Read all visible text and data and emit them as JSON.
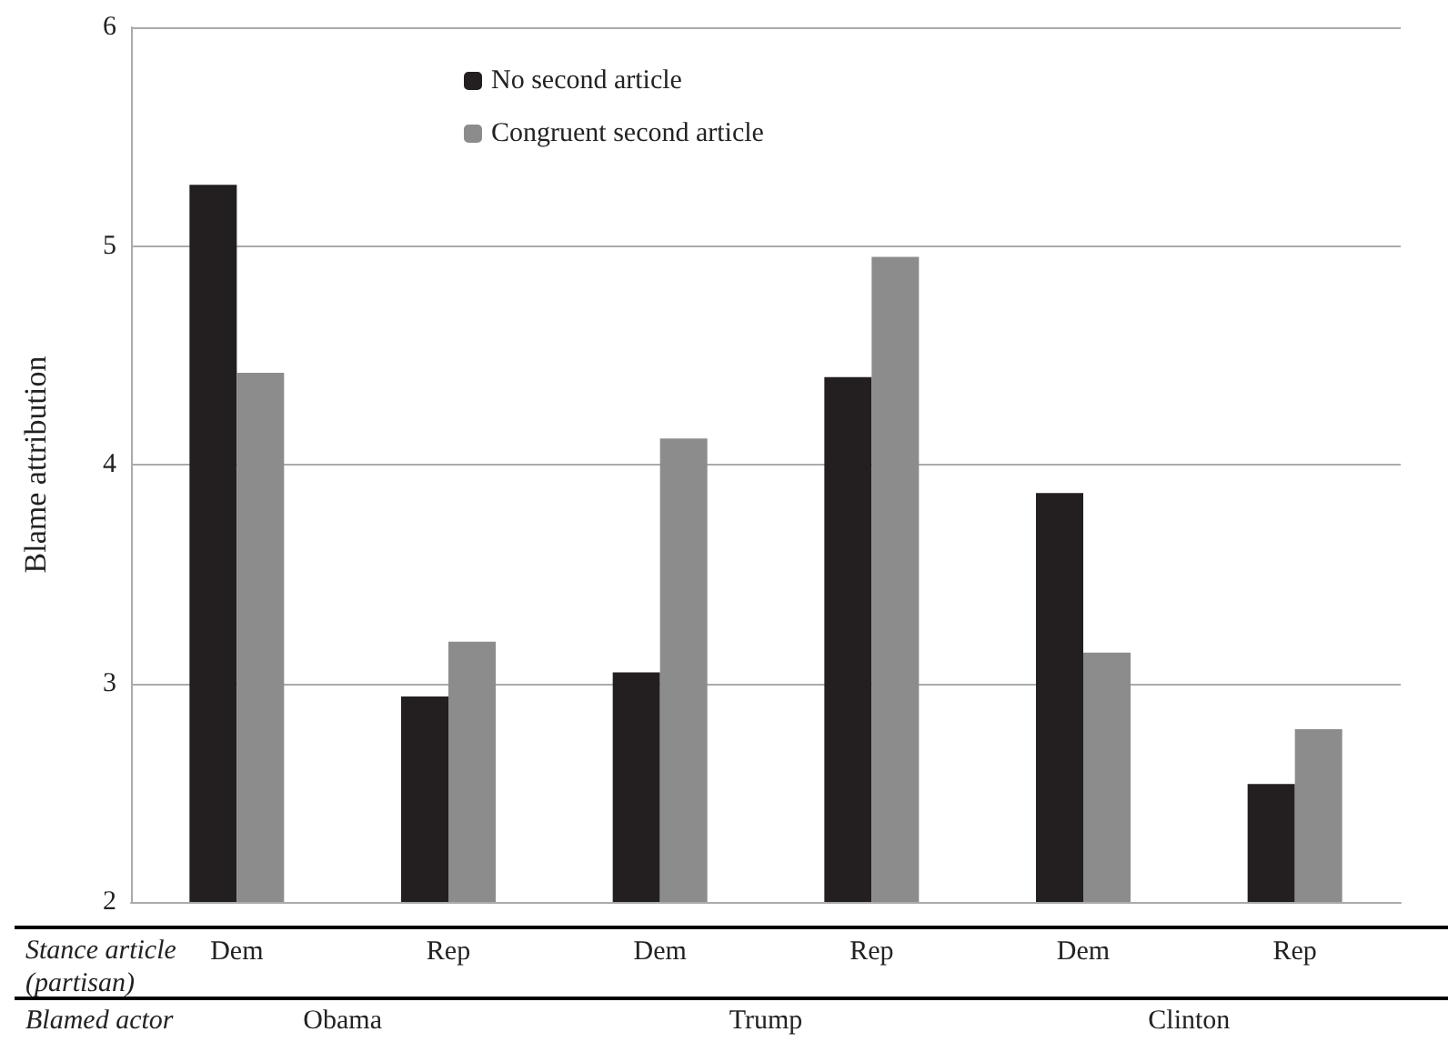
{
  "chart_data": {
    "type": "bar",
    "ylabel": "Blame attribution",
    "categories": [
      "Dem",
      "Rep",
      "Dem",
      "Rep",
      "Dem",
      "Rep"
    ],
    "series": [
      {
        "name": "No second article",
        "color": "#231f20",
        "values": [
          5.28,
          2.94,
          3.05,
          4.4,
          3.87,
          2.54
        ]
      },
      {
        "name": "Congruent second article",
        "color": "#8c8c8c",
        "values": [
          4.42,
          3.19,
          4.12,
          4.95,
          3.14,
          2.79
        ]
      }
    ],
    "ylim": [
      2,
      6
    ],
    "yticks": [
      2,
      3,
      4,
      5,
      6
    ],
    "grid": "y",
    "legend": "top",
    "annotations": [
      "Stance article (partisan)",
      "Blamed actor",
      "Obama",
      "Trump",
      "Clinton"
    ]
  }
}
